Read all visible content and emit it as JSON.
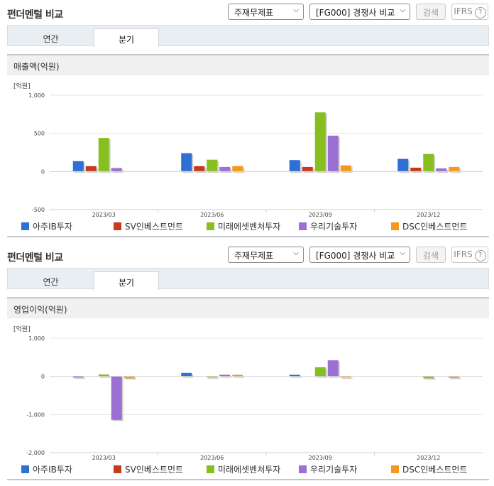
{
  "header": {
    "title": "펀더멘털 비교",
    "select_statement": "주재무제표",
    "select_group": "[FG000] 경쟁사 비교",
    "search_label": "검색",
    "ifrs_label": "IFRS",
    "help_symbol": "?"
  },
  "tabs": {
    "annual": "연간",
    "quarterly": "분기"
  },
  "chart_data": [
    {
      "type": "bar",
      "title": "매출액(억원)",
      "unit_label": "[억원]",
      "categories": [
        "2023/03",
        "2023/06",
        "2023/09",
        "2023/12"
      ],
      "ylim": [
        -500,
        1000
      ],
      "yticks": [
        1000,
        500,
        0,
        -500
      ],
      "ytick_labels": [
        "1,000",
        "500",
        "0",
        "-500"
      ],
      "grid": true,
      "legend": "bottom",
      "series": [
        {
          "name": "아주IB투자",
          "color": "#2f6fd6",
          "values": [
            135,
            240,
            150,
            165
          ]
        },
        {
          "name": "SV인베스트먼트",
          "color": "#c63b1f",
          "values": [
            70,
            70,
            60,
            50
          ]
        },
        {
          "name": "미래에셋벤처투자",
          "color": "#86bf1f",
          "values": [
            440,
            155,
            775,
            230
          ]
        },
        {
          "name": "우리기술투자",
          "color": "#9b6fd3",
          "values": [
            45,
            60,
            470,
            40
          ]
        },
        {
          "name": "DSC인베스트먼트",
          "color": "#f39a1d",
          "values": [
            0,
            70,
            80,
            60
          ]
        }
      ]
    },
    {
      "type": "bar",
      "title": "영업이익(억원)",
      "unit_label": "[억원]",
      "categories": [
        "2023/03",
        "2023/06",
        "2023/09",
        "2023/12"
      ],
      "ylim": [
        -2000,
        1000
      ],
      "yticks": [
        1000,
        0,
        -1000,
        -2000
      ],
      "ytick_labels": [
        "1,000",
        "0",
        "-1,000",
        "-2,000"
      ],
      "grid": true,
      "legend": "bottom",
      "series": [
        {
          "name": "아주IB투자",
          "color": "#2f6fd6",
          "values": [
            -30,
            90,
            40,
            0
          ]
        },
        {
          "name": "SV인베스트먼트",
          "color": "#c63b1f",
          "values": [
            0,
            0,
            0,
            0
          ]
        },
        {
          "name": "미래에셋벤처투자",
          "color": "#86bf1f",
          "values": [
            50,
            -30,
            240,
            -50
          ]
        },
        {
          "name": "우리기술투자",
          "color": "#9b6fd3",
          "values": [
            -1140,
            40,
            420,
            0
          ]
        },
        {
          "name": "DSC인베스트먼트",
          "color": "#f39a1d",
          "values": [
            -50,
            40,
            -30,
            -40
          ]
        }
      ]
    }
  ]
}
